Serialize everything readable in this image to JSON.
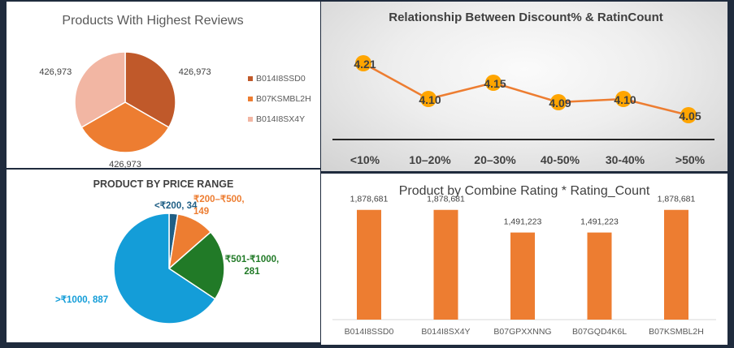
{
  "chart_data": [
    {
      "type": "pie",
      "title": "Products With Highest Reviews",
      "categories": [
        "B014I8SSD0",
        "B07KSMBL2H",
        "B014I8SX4Y"
      ],
      "values": [
        426973,
        426973,
        426973
      ],
      "labels": [
        "426,973",
        "426,973",
        "426,973"
      ],
      "colors": [
        "#c0592a",
        "#ed7d31",
        "#f2b6a3"
      ],
      "legend": "right"
    },
    {
      "type": "line",
      "title": "Relationship Between Discount% & RatinCount",
      "categories": [
        "<10%",
        "10–20%",
        "20–30%",
        "40-50%",
        "30-40%",
        ">50%"
      ],
      "values": [
        4.21,
        4.1,
        4.15,
        4.09,
        4.1,
        4.05
      ],
      "labels": [
        "4.21",
        "4.10",
        "4.15",
        "4.09",
        "4.10",
        "4.05"
      ],
      "line_color": "#ed7d31",
      "marker_color": "#ffa500",
      "ylim": [
        3.95,
        4.3
      ]
    },
    {
      "type": "pie",
      "title": "PRODUCT BY PRICE RANGE",
      "categories": [
        "<₹200",
        "₹200–₹500",
        "₹501-₹1000",
        ">₹1000"
      ],
      "values": [
        34,
        149,
        281,
        887
      ],
      "labels": [
        "<₹200, 34",
        "₹200–₹500,\n149",
        "₹501-₹1000,\n281",
        ">₹1000, 887"
      ],
      "colors": [
        "#1f5f85",
        "#ed7d31",
        "#217a27",
        "#149dd8"
      ]
    },
    {
      "type": "bar",
      "title": "Product by Combine Rating * Rating_Count",
      "categories": [
        "B014I8SSD0",
        "B014I8SX4Y",
        "B07GPXXNNG",
        "B07GQD4K6L",
        "B07KSMBL2H"
      ],
      "values": [
        1878681,
        1878681,
        1491223,
        1491223,
        1878681
      ],
      "labels": [
        "1,878,681",
        "1,878,681",
        "1,491,223",
        "1,491,223",
        "1,878,681"
      ],
      "color": "#ed7d31",
      "ylim": [
        0,
        2000000
      ]
    }
  ]
}
